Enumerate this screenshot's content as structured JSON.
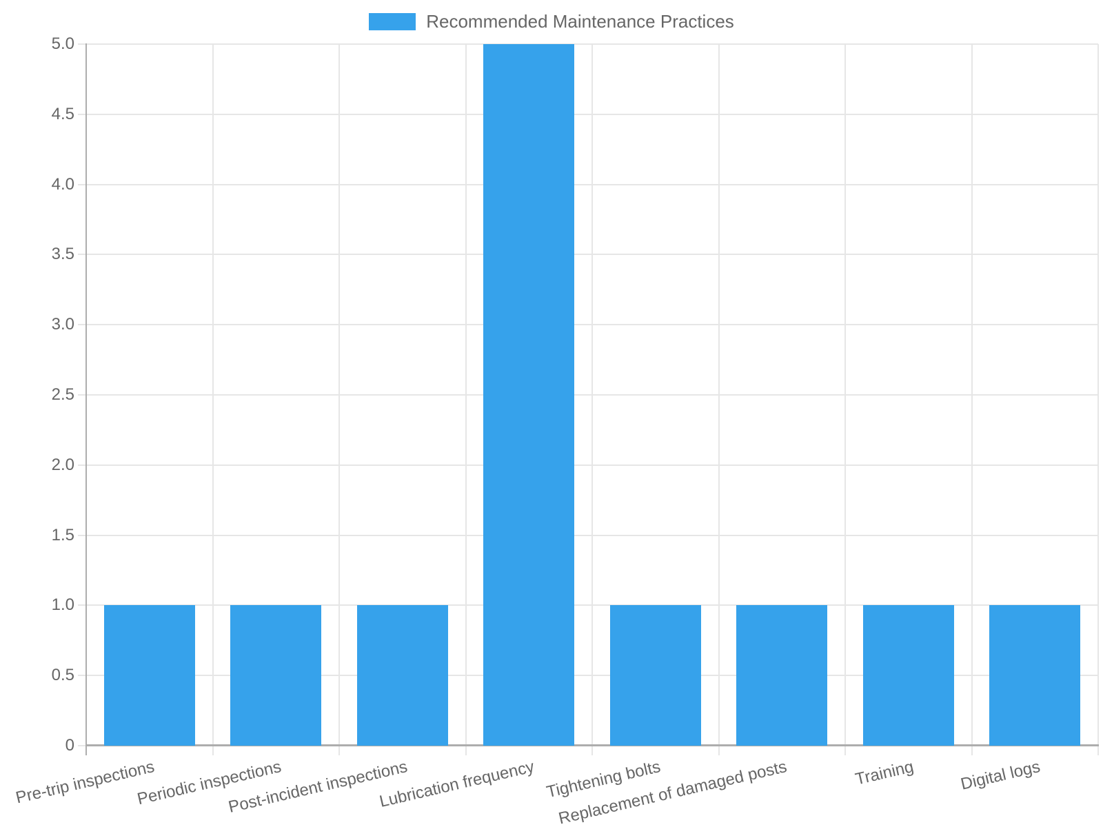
{
  "legend": {
    "label": "Recommended Maintenance Practices"
  },
  "chart_data": {
    "type": "bar",
    "title": "",
    "categories": [
      "Pre-trip inspections",
      "Periodic inspections",
      "Post-incident inspections",
      "Lubrication frequency",
      "Tightening bolts",
      "Replacement of damaged posts",
      "Training",
      "Digital logs"
    ],
    "series": [
      {
        "name": "Recommended Maintenance Practices",
        "values": [
          1,
          1,
          1,
          5,
          1,
          1,
          1,
          1
        ]
      }
    ],
    "xlabel": "",
    "ylabel": "",
    "ylim": [
      0,
      5
    ],
    "y_ticks": [
      "5.0",
      "4.5",
      "4.0",
      "3.5",
      "3.0",
      "2.5",
      "2.0",
      "1.5",
      "1.0",
      "0.5",
      "0"
    ],
    "grid": true,
    "legend_position": "top",
    "colors": {
      "bar": "#36A2EB",
      "tick_text": "#666666",
      "gridline": "#e6e6e6",
      "axis_line": "#adadad"
    }
  }
}
